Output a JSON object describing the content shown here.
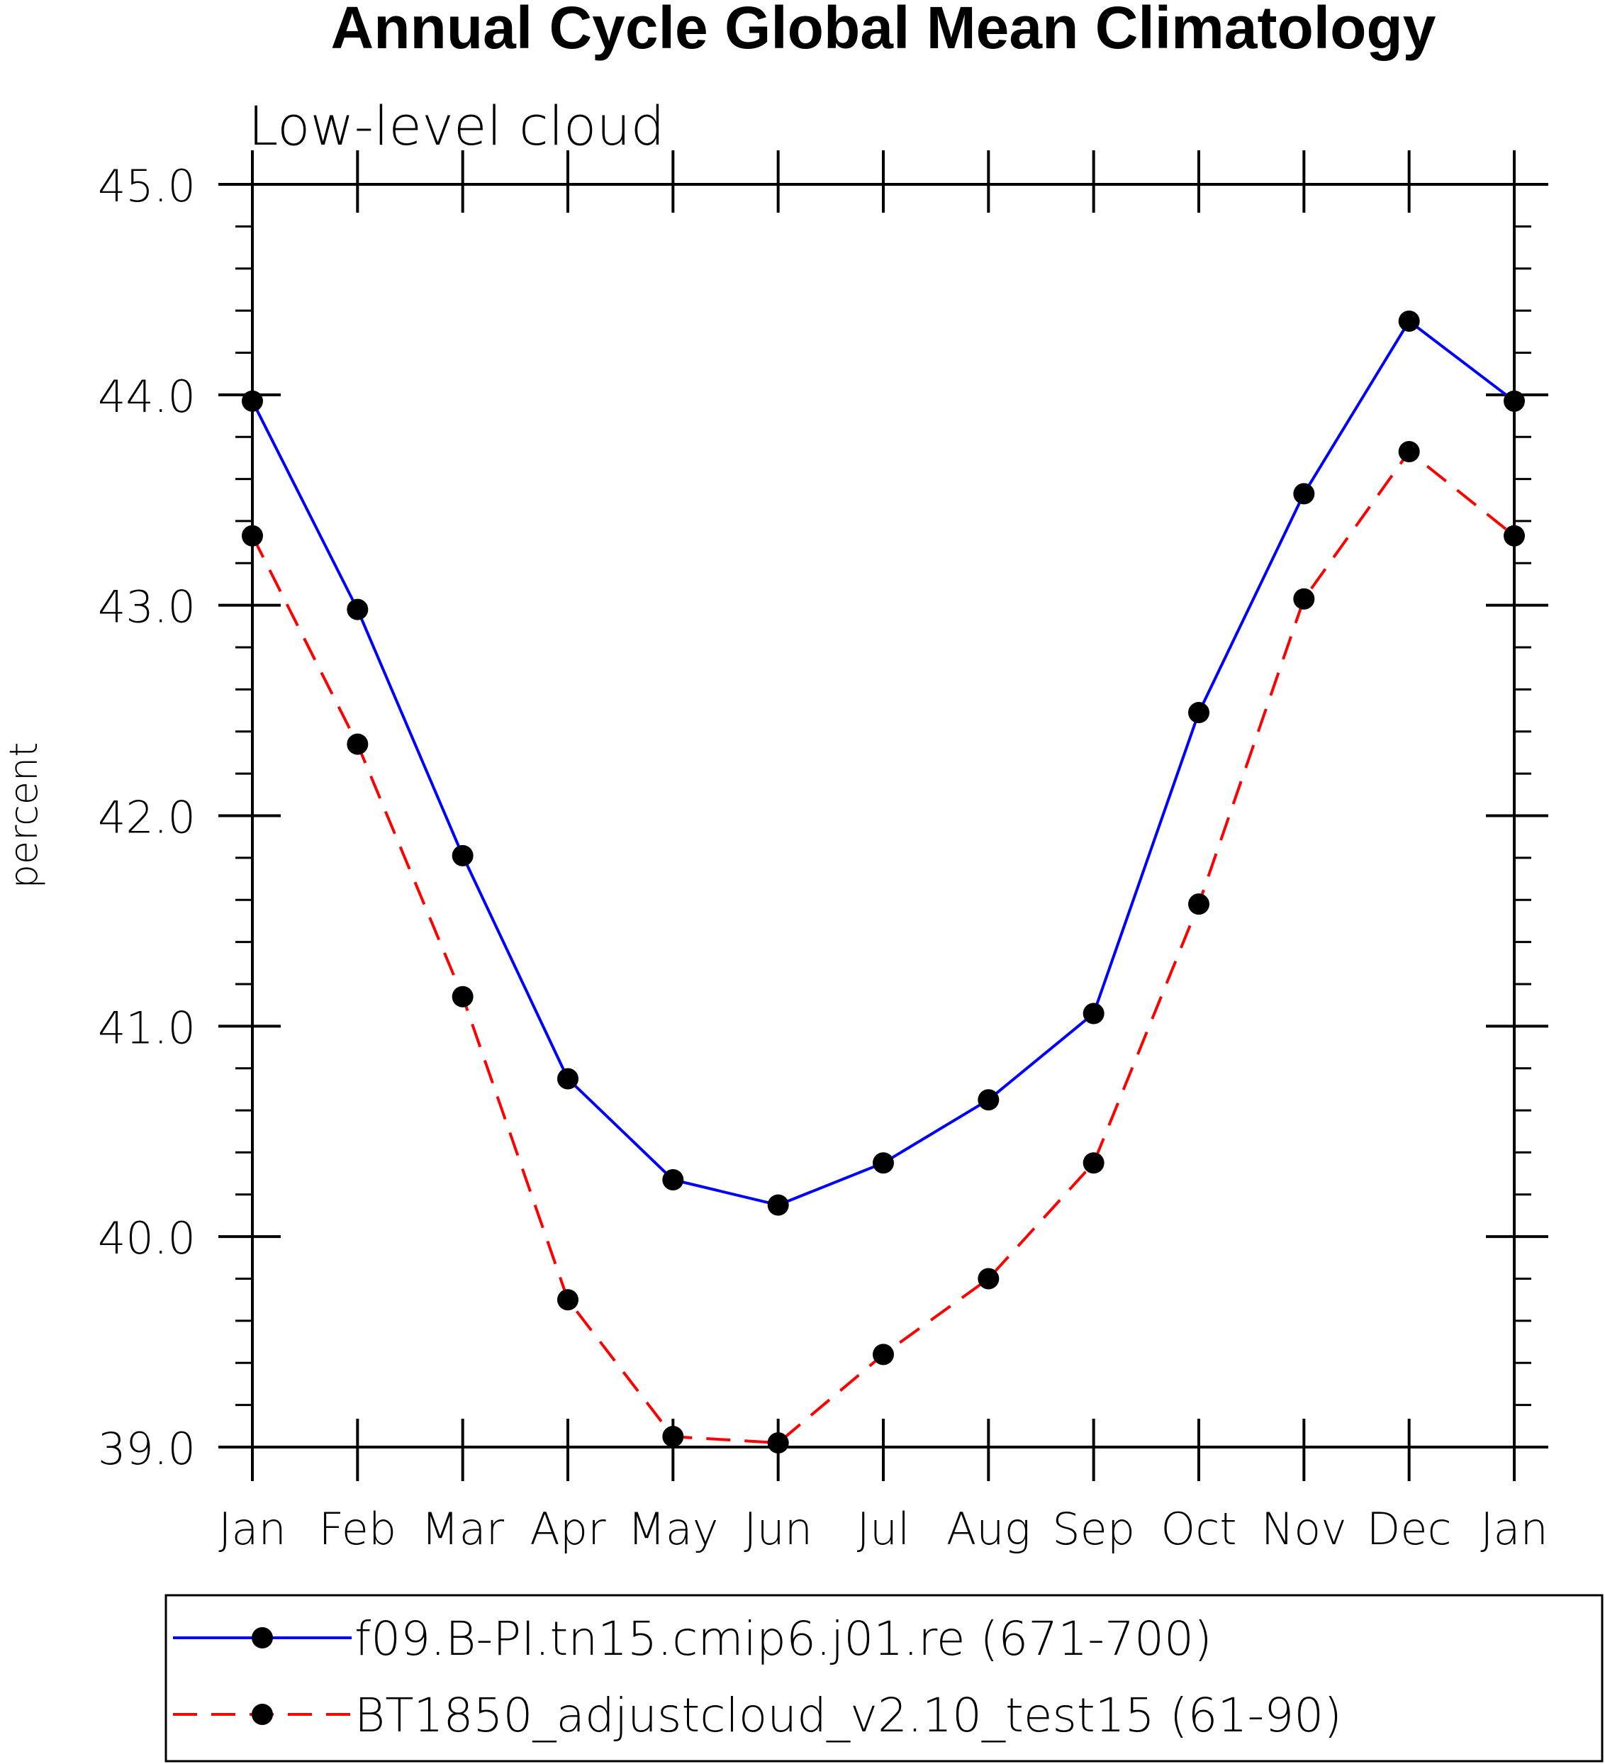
{
  "chart_data": {
    "type": "line",
    "title": "Annual Cycle Global Mean Climatology",
    "subtitle": "Low-level cloud",
    "xlabel": "",
    "ylabel": "percent",
    "ylim": [
      39.0,
      45.0
    ],
    "yticks": [
      "39.0",
      "40.0",
      "41.0",
      "42.0",
      "43.0",
      "44.0",
      "45.0"
    ],
    "categories": [
      "Jan",
      "Feb",
      "Mar",
      "Apr",
      "May",
      "Jun",
      "Jul",
      "Aug",
      "Sep",
      "Oct",
      "Nov",
      "Dec",
      "Jan"
    ],
    "series": [
      {
        "name": "f09.B-PI.tn15.cmip6.j01.re (671-700)",
        "color": "#0000ff",
        "dash": "solid",
        "values": [
          43.97,
          42.98,
          41.81,
          40.75,
          40.27,
          40.15,
          40.35,
          40.65,
          41.06,
          42.49,
          43.53,
          44.35,
          43.97
        ]
      },
      {
        "name": "BT1850_adjustcloud_v2.10_test15 (61-90)",
        "color": "#ff0000",
        "dash": "dashed",
        "values": [
          43.33,
          42.34,
          41.14,
          39.7,
          39.05,
          39.02,
          39.44,
          39.8,
          40.35,
          41.58,
          43.03,
          43.73,
          43.33
        ]
      }
    ],
    "legend_position": "bottom",
    "marker_color": "#000000"
  }
}
